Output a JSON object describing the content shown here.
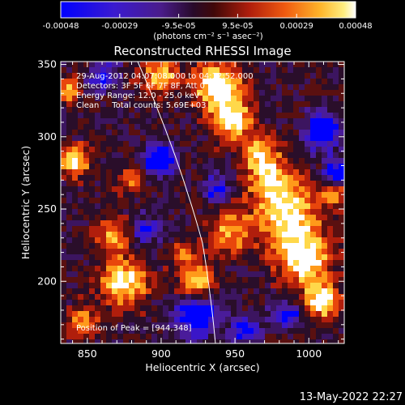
{
  "colorbar": {
    "tick_labels": [
      "-0.00048",
      "-0.00029",
      "-9.5e-05",
      "9.5e-05",
      "0.00029",
      "0.00048"
    ],
    "units": "(photons cm⁻² s⁻¹ asec⁻²)"
  },
  "plot": {
    "title": "Reconstructed RHESSI Image",
    "xlabel": "Heliocentric X (arcsec)",
    "ylabel": "Heliocentric Y (arcsec)",
    "xlim": [
      832,
      1024
    ],
    "ylim": [
      157,
      352
    ],
    "x_tick_labels": [
      "850",
      "900",
      "950",
      "1000"
    ],
    "y_tick_labels": [
      "200",
      "250",
      "300",
      "350"
    ],
    "info_lines": [
      "29-Aug-2012 04:07:08.000 to 04:12:52.000",
      "Detectors: 3F 5F 6F 7F 8F, Att 0",
      "Energy Range: 12.0 - 25.0 keV",
      "Clean     Total counts: 5.69E+03"
    ],
    "peak_text": "Position of Peak = [944,348]"
  },
  "footer": {
    "timestamp": "13-May-2022 22:27"
  },
  "colors": {
    "background": "#000000",
    "foreground": "#ffffff",
    "colormap": [
      "#0000ff",
      "#3a16c8",
      "#4a1c9a",
      "#3c1560",
      "#2a0e2a",
      "#5a1010",
      "#b01e0c",
      "#e8460c",
      "#ff9a1a",
      "#ffd84a",
      "#ffffff"
    ]
  }
}
